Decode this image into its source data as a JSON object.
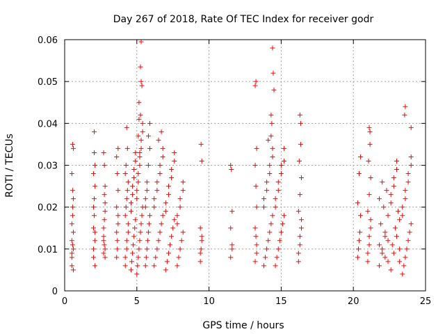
{
  "chart_data": {
    "type": "scatter",
    "title": "Day 267 of 2018, Rate Of TEC Index for receiver godr",
    "xlabel": "GPS time / hours",
    "ylabel": "ROTI / TECUs",
    "xlim": [
      0,
      25
    ],
    "ylim": [
      0,
      0.06
    ],
    "xticks": [
      0,
      5,
      10,
      15,
      20,
      25
    ],
    "xtick_labels": [
      "0",
      "5",
      "10",
      "15",
      "20",
      "25"
    ],
    "yticks": [
      0,
      0.01,
      0.02,
      0.03,
      0.04,
      0.05,
      0.06
    ],
    "ytick_labels": [
      "0",
      "0.01",
      "0.02",
      "0.03",
      "0.04",
      "0.05",
      "0.06"
    ],
    "grid": true,
    "marker": "+",
    "color": "#ff0000",
    "series": [
      {
        "name": "ROTI",
        "x": [
          0.5,
          0.5,
          0.5,
          0.6,
          0.6,
          0.55,
          0.55,
          0.5,
          0.6,
          0.55,
          0.5,
          0.6,
          0.55,
          0.6,
          0.5,
          0.55,
          2.0,
          2.0,
          2.0,
          2.1,
          2.1,
          2.05,
          2.05,
          2.0,
          2.1,
          2.05,
          2.0,
          2.1,
          2.05,
          2.1,
          2.7,
          2.7,
          2.75,
          2.8,
          2.8,
          2.75,
          2.7,
          2.8,
          2.75,
          2.7,
          2.8,
          2.75,
          2.7,
          2.8,
          3.6,
          3.65,
          3.7,
          3.6,
          3.7,
          3.65,
          3.6,
          3.7,
          3.65,
          3.6,
          3.7,
          4.2,
          4.3,
          4.4,
          4.2,
          4.3,
          4.4,
          4.25,
          4.35,
          4.2,
          4.3,
          4.4,
          4.25,
          4.35,
          4.2,
          4.3,
          4.6,
          4.7,
          4.8,
          4.9,
          4.6,
          4.7,
          4.8,
          4.9,
          4.65,
          4.75,
          4.85,
          4.6,
          4.7,
          4.8,
          4.9,
          5.0,
          5.1,
          5.2,
          5.3,
          5.4,
          5.0,
          5.1,
          5.2,
          5.3,
          5.4,
          5.05,
          5.15,
          5.25,
          5.35,
          5.0,
          5.1,
          5.2,
          5.3,
          5.4,
          5.15,
          5.25,
          5.3,
          5.25,
          5.3,
          5.35,
          5.1,
          5.2,
          5.15,
          5.6,
          5.7,
          5.8,
          5.9,
          5.6,
          5.7,
          5.8,
          5.9,
          5.65,
          5.75,
          5.85,
          5.6,
          5.7,
          5.8,
          5.9,
          6.2,
          6.4,
          6.6,
          6.8,
          6.2,
          6.4,
          6.6,
          6.8,
          6.3,
          6.5,
          6.7,
          6.2,
          6.4,
          6.6,
          6.8,
          6.5,
          6.7,
          7.0,
          7.2,
          7.4,
          7.6,
          7.0,
          7.2,
          7.4,
          7.6,
          7.1,
          7.3,
          7.5,
          7.0,
          7.2,
          7.4,
          7.6,
          7.8,
          8.0,
          8.2,
          7.8,
          8.0,
          8.2,
          7.9,
          8.1,
          7.8,
          8.0,
          8.2,
          9.4,
          9.5,
          9.4,
          9.5,
          9.45,
          9.4,
          9.5,
          9.45,
          11.5,
          11.6,
          11.5,
          11.6,
          11.55,
          11.5,
          11.6,
          13.2,
          13.3,
          13.2,
          13.3,
          13.25,
          13.2,
          13.3,
          13.25,
          13.2,
          13.3,
          13.25,
          13.8,
          14.0,
          14.2,
          14.4,
          13.8,
          14.0,
          14.2,
          14.4,
          13.9,
          14.1,
          14.3,
          13.8,
          14.0,
          14.2,
          14.4,
          14.1,
          14.3,
          14.4,
          14.45,
          14.5,
          14.3,
          14.35,
          14.6,
          14.8,
          15.0,
          15.2,
          14.6,
          14.8,
          15.0,
          15.2,
          14.7,
          14.9,
          15.1,
          14.6,
          14.8,
          15.0,
          15.2,
          16.2,
          16.3,
          16.4,
          16.2,
          16.3,
          16.4,
          16.25,
          16.35,
          16.2,
          16.3,
          16.4,
          16.3,
          16.35,
          20.3,
          20.4,
          20.5,
          20.3,
          20.4,
          20.5,
          20.35,
          20.45,
          21.0,
          21.1,
          21.2,
          21.0,
          21.1,
          21.2,
          21.05,
          21.15,
          21.0,
          21.1,
          21.2,
          21.1,
          21.15,
          21.8,
          22.0,
          22.2,
          22.4,
          21.8,
          22.0,
          22.2,
          22.4,
          21.9,
          22.1,
          22.3,
          21.8,
          22.0,
          22.2,
          22.4,
          22.6,
          22.8,
          23.0,
          23.2,
          22.6,
          22.8,
          23.0,
          23.2,
          22.7,
          22.9,
          23.1,
          22.6,
          22.8,
          23.0,
          23.2,
          23.4,
          23.6,
          23.8,
          24.0,
          23.4,
          23.6,
          23.8,
          24.0,
          23.5,
          23.7,
          23.9,
          23.4,
          23.6,
          23.8,
          24.0,
          23.6,
          23.55,
          24.0
        ],
        "y": [
          0.008,
          0.012,
          0.016,
          0.01,
          0.014,
          0.018,
          0.024,
          0.028,
          0.034,
          0.035,
          0.006,
          0.005,
          0.02,
          0.022,
          0.009,
          0.011,
          0.01,
          0.015,
          0.02,
          0.025,
          0.03,
          0.033,
          0.038,
          0.008,
          0.012,
          0.018,
          0.028,
          0.006,
          0.022,
          0.014,
          0.009,
          0.013,
          0.017,
          0.021,
          0.025,
          0.03,
          0.033,
          0.008,
          0.011,
          0.015,
          0.019,
          0.023,
          0.012,
          0.01,
          0.008,
          0.012,
          0.016,
          0.02,
          0.024,
          0.028,
          0.032,
          0.034,
          0.01,
          0.014,
          0.018,
          0.006,
          0.01,
          0.014,
          0.018,
          0.022,
          0.026,
          0.03,
          0.034,
          0.008,
          0.012,
          0.016,
          0.02,
          0.024,
          0.028,
          0.039,
          0.005,
          0.009,
          0.013,
          0.017,
          0.021,
          0.025,
          0.029,
          0.033,
          0.007,
          0.011,
          0.015,
          0.019,
          0.023,
          0.027,
          0.031,
          0.004,
          0.008,
          0.012,
          0.016,
          0.02,
          0.024,
          0.028,
          0.032,
          0.036,
          0.04,
          0.006,
          0.01,
          0.014,
          0.018,
          0.022,
          0.026,
          0.03,
          0.034,
          0.038,
          0.041,
          0.042,
          0.0595,
          0.0535,
          0.05,
          0.049,
          0.037,
          0.033,
          0.045,
          0.006,
          0.01,
          0.014,
          0.018,
          0.022,
          0.026,
          0.03,
          0.034,
          0.008,
          0.012,
          0.016,
          0.02,
          0.024,
          0.037,
          0.04,
          0.006,
          0.01,
          0.014,
          0.018,
          0.022,
          0.026,
          0.03,
          0.034,
          0.008,
          0.012,
          0.016,
          0.02,
          0.024,
          0.028,
          0.032,
          0.036,
          0.038,
          0.005,
          0.009,
          0.013,
          0.017,
          0.021,
          0.025,
          0.029,
          0.033,
          0.007,
          0.011,
          0.015,
          0.019,
          0.023,
          0.027,
          0.031,
          0.006,
          0.01,
          0.014,
          0.018,
          0.022,
          0.026,
          0.008,
          0.012,
          0.016,
          0.02,
          0.024,
          0.007,
          0.012,
          0.015,
          0.031,
          0.035,
          0.009,
          0.013,
          0.01,
          0.008,
          0.011,
          0.015,
          0.019,
          0.029,
          0.03,
          0.01,
          0.007,
          0.011,
          0.015,
          0.02,
          0.025,
          0.03,
          0.034,
          0.05,
          0.049,
          0.009,
          0.013,
          0.006,
          0.01,
          0.014,
          0.018,
          0.022,
          0.026,
          0.03,
          0.034,
          0.008,
          0.012,
          0.016,
          0.02,
          0.024,
          0.028,
          0.032,
          0.036,
          0.037,
          0.058,
          0.052,
          0.048,
          0.042,
          0.04,
          0.006,
          0.01,
          0.014,
          0.018,
          0.022,
          0.026,
          0.03,
          0.034,
          0.008,
          0.012,
          0.016,
          0.02,
          0.024,
          0.028,
          0.031,
          0.007,
          0.011,
          0.015,
          0.019,
          0.023,
          0.027,
          0.031,
          0.035,
          0.009,
          0.013,
          0.017,
          0.042,
          0.04,
          0.008,
          0.012,
          0.018,
          0.021,
          0.028,
          0.032,
          0.01,
          0.014,
          0.007,
          0.011,
          0.015,
          0.019,
          0.023,
          0.027,
          0.031,
          0.035,
          0.009,
          0.013,
          0.017,
          0.039,
          0.038,
          0.006,
          0.01,
          0.014,
          0.018,
          0.022,
          0.026,
          0.008,
          0.012,
          0.016,
          0.02,
          0.024,
          0.011,
          0.009,
          0.013,
          0.007,
          0.005,
          0.009,
          0.013,
          0.017,
          0.021,
          0.025,
          0.029,
          0.007,
          0.011,
          0.015,
          0.019,
          0.023,
          0.027,
          0.031,
          0.01,
          0.004,
          0.008,
          0.012,
          0.016,
          0.02,
          0.024,
          0.028,
          0.032,
          0.006,
          0.01,
          0.014,
          0.018,
          0.022,
          0.026,
          0.03,
          0.044,
          0.042,
          0.039
        ]
      }
    ]
  }
}
